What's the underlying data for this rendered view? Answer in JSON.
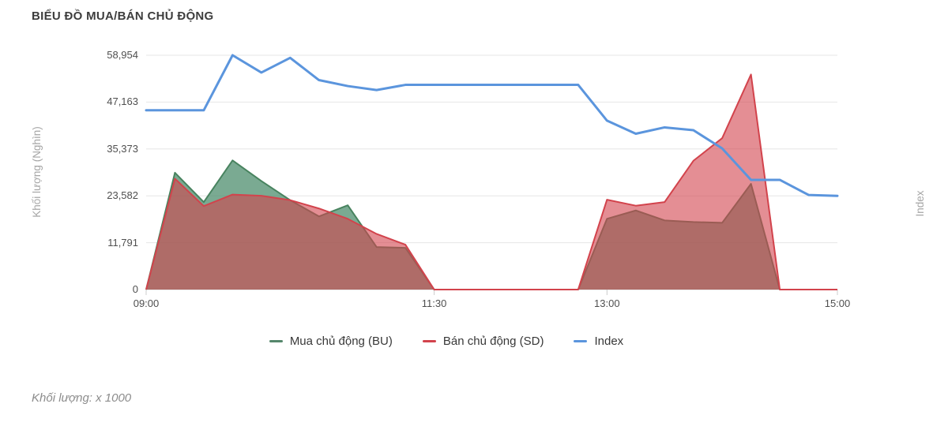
{
  "title": "BIỂU ĐỒ MUA/BÁN CHỦ ĐỘNG",
  "footnote": "Khối lượng: x 1000",
  "y_axis": {
    "title": "Khối lượng (Nghìn)",
    "ticks": [
      {
        "label": "58,954",
        "value": 58954
      },
      {
        "label": "47,163",
        "value": 47163
      },
      {
        "label": "35,373",
        "value": 35373
      },
      {
        "label": "23,582",
        "value": 23582
      },
      {
        "label": "11,791",
        "value": 11791
      },
      {
        "label": "0",
        "value": 0
      }
    ]
  },
  "x_axis": {
    "ticks": [
      "09:00",
      "11:30",
      "13:00",
      "15:00"
    ]
  },
  "right_axis": {
    "title": "Index"
  },
  "legend": [
    {
      "label": "Mua chủ động (BU)",
      "color": "#55876c"
    },
    {
      "label": "Bán chủ động (SD)",
      "color": "#d2434c"
    },
    {
      "label": "Index",
      "color": "#5b95dd"
    }
  ],
  "colors": {
    "bu_line": "#48835f",
    "bu_fill": "#4e8d6e",
    "bu_fill_opacity": 0.75,
    "sd_line": "#d2434c",
    "sd_fill": "#d2434c",
    "sd_fill_opacity": 0.6,
    "index_line": "#5b95dd",
    "gridline": "#e6e6e6",
    "baseline": "#d4d4d4",
    "tick_mark": "#cccccc"
  },
  "chart_data": {
    "type": "area",
    "title": "BIỂU ĐỒ MUA/BÁN CHỦ ĐỘNG",
    "ylabel": "Khối lượng (Nghìn)",
    "ylabel_right": "Index",
    "ylim": [
      0,
      58954
    ],
    "yticks": [
      0,
      11791,
      23582,
      35373,
      47163,
      58954
    ],
    "xticks": [
      "09:00",
      "11:30",
      "13:00",
      "15:00"
    ],
    "grid": "horizontal",
    "legend_position": "bottom",
    "x": [
      "09:00",
      "09:15",
      "09:30",
      "09:45",
      "10:00",
      "10:15",
      "10:30",
      "10:45",
      "11:00",
      "11:15",
      "11:30",
      "12:45",
      "13:00",
      "13:15",
      "13:30",
      "13:45",
      "14:00",
      "14:15",
      "14:30",
      "14:45",
      "15:00"
    ],
    "series": [
      {
        "name": "Mua chủ động (BU)",
        "type": "area",
        "values": [
          0,
          29400,
          22000,
          32500,
          27300,
          22500,
          18400,
          21200,
          10700,
          10500,
          0,
          0,
          17800,
          19900,
          17400,
          17000,
          16800,
          26600,
          0,
          0,
          0
        ]
      },
      {
        "name": "Bán chủ động (SD)",
        "type": "area",
        "values": [
          0,
          27900,
          21000,
          23900,
          23600,
          22500,
          20400,
          17800,
          14000,
          11300,
          0,
          0,
          22600,
          21100,
          22000,
          32400,
          38100,
          54100,
          0,
          0,
          0
        ]
      },
      {
        "name": "Index",
        "type": "line",
        "axis": "right",
        "values": [
          45100,
          45100,
          45100,
          58954,
          54600,
          58300,
          52700,
          51200,
          50200,
          51500,
          51500,
          51500,
          42500,
          39200,
          40800,
          40100,
          35500,
          27600,
          27600,
          23800,
          23582
        ]
      }
    ]
  }
}
